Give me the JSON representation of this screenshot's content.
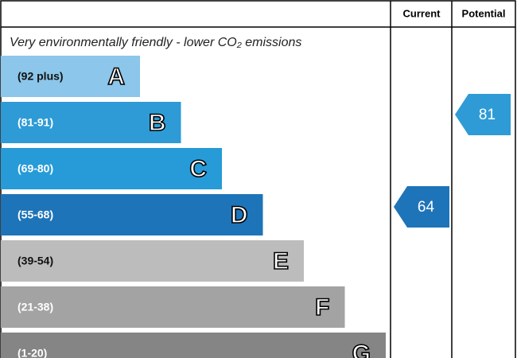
{
  "header": {
    "columns": [
      "Current",
      "Potential"
    ]
  },
  "subtitle": "Very environmentally friendly - lower CO₂ emissions",
  "bands": [
    {
      "range": "(92 plus)",
      "letter": "A",
      "color": "#8cc6ea"
    },
    {
      "range": "(81-91)",
      "letter": "B",
      "color": "#2e9bd6"
    },
    {
      "range": "(69-80)",
      "letter": "C",
      "color": "#269bd8"
    },
    {
      "range": "(55-68)",
      "letter": "D",
      "color": "#1e74b8"
    },
    {
      "range": "(39-54)",
      "letter": "E",
      "color": "#bcbcbc"
    },
    {
      "range": "(21-38)",
      "letter": "F",
      "color": "#a3a3a3"
    },
    {
      "range": "(1-20)",
      "letter": "G",
      "color": "#858585"
    }
  ],
  "ratings": {
    "current": 64,
    "potential": 81
  }
}
